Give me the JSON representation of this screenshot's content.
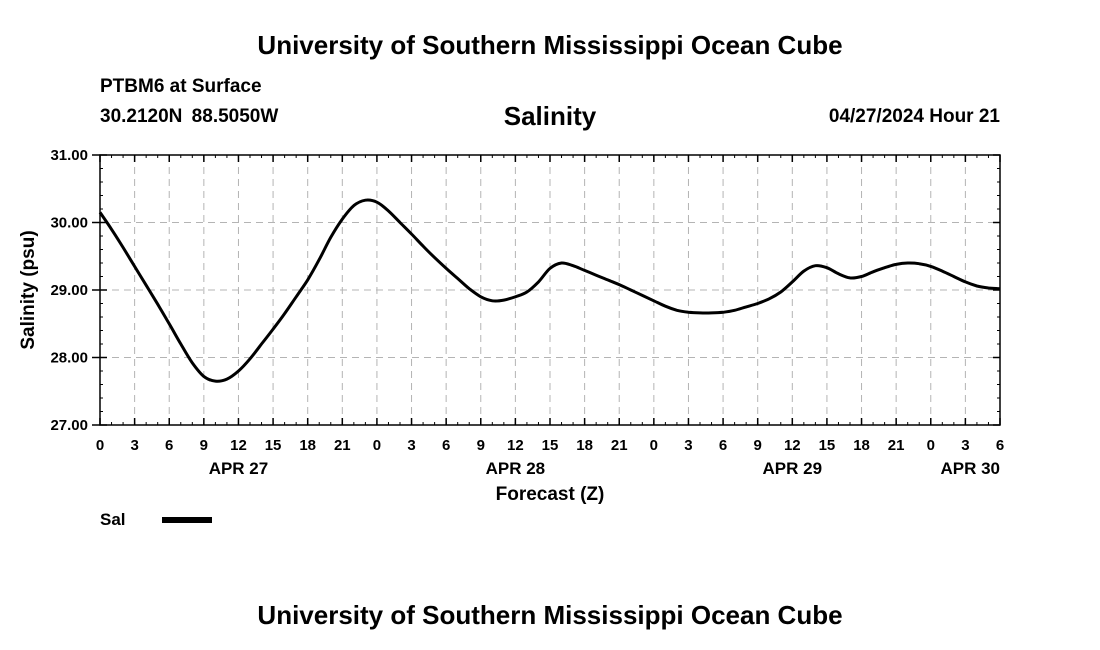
{
  "header": {
    "title": "University of Southern Mississippi Ocean Cube",
    "station": "PTBM6 at Surface",
    "coordinates": "30.2120N  88.5050W",
    "timestamp": "04/27/2024 Hour 21"
  },
  "footer": {
    "title": "University of Southern Mississippi Ocean Cube"
  },
  "chart_data": {
    "type": "line",
    "title": "Salinity",
    "xlabel": "Forecast (Z)",
    "ylabel": "Salinity (psu)",
    "ylim": [
      27.0,
      31.0
    ],
    "y_ticks": [
      "27.00",
      "28.00",
      "29.00",
      "30.00",
      "31.00"
    ],
    "xlim_hours": [
      0,
      78
    ],
    "x_tick_labels": [
      "0",
      "3",
      "6",
      "9",
      "12",
      "15",
      "18",
      "21",
      "0",
      "3",
      "6",
      "9",
      "12",
      "15",
      "18",
      "21",
      "0",
      "3",
      "6",
      "9",
      "12",
      "15",
      "18",
      "21",
      "0",
      "3",
      "6"
    ],
    "date_labels": [
      {
        "label": "APR 27",
        "hour": 12
      },
      {
        "label": "APR 28",
        "hour": 36
      },
      {
        "label": "APR 29",
        "hour": 60
      },
      {
        "label": "APR 30",
        "hour": 78
      }
    ],
    "grid": true,
    "legend": {
      "placement": "bottom-left",
      "label": "Sal"
    },
    "series": [
      {
        "name": "Sal",
        "x": [
          0,
          1,
          2,
          3,
          4,
          5,
          6,
          7,
          8,
          9,
          10,
          11,
          12,
          13,
          14,
          15,
          16,
          17,
          18,
          19,
          20,
          21,
          22,
          23,
          24,
          25,
          26,
          27,
          28,
          29,
          30,
          31,
          32,
          33,
          34,
          35,
          36,
          37,
          38,
          39,
          40,
          41,
          42,
          43,
          44,
          45,
          46,
          47,
          48,
          49,
          50,
          51,
          52,
          53,
          54,
          55,
          56,
          57,
          58,
          59,
          60,
          61,
          62,
          63,
          64,
          65,
          66,
          67,
          68,
          69,
          70,
          71,
          72,
          73,
          74,
          75,
          76,
          77,
          78
        ],
        "y": [
          30.15,
          29.9,
          29.63,
          29.35,
          29.07,
          28.79,
          28.5,
          28.2,
          27.92,
          27.72,
          27.65,
          27.68,
          27.8,
          27.98,
          28.2,
          28.42,
          28.65,
          28.9,
          29.15,
          29.45,
          29.78,
          30.05,
          30.25,
          30.33,
          30.3,
          30.17,
          30.0,
          29.83,
          29.65,
          29.48,
          29.32,
          29.17,
          29.02,
          28.9,
          28.84,
          28.85,
          28.9,
          28.97,
          29.12,
          29.32,
          29.4,
          29.36,
          29.29,
          29.22,
          29.15,
          29.08,
          29.0,
          28.92,
          28.84,
          28.76,
          28.7,
          28.67,
          28.66,
          28.66,
          28.67,
          28.7,
          28.75,
          28.8,
          28.87,
          28.97,
          29.12,
          29.28,
          29.36,
          29.33,
          29.24,
          29.18,
          29.2,
          29.27,
          29.33,
          29.38,
          29.4,
          29.39,
          29.35,
          29.28,
          29.2,
          29.12,
          29.06,
          29.03,
          29.02
        ]
      }
    ]
  }
}
